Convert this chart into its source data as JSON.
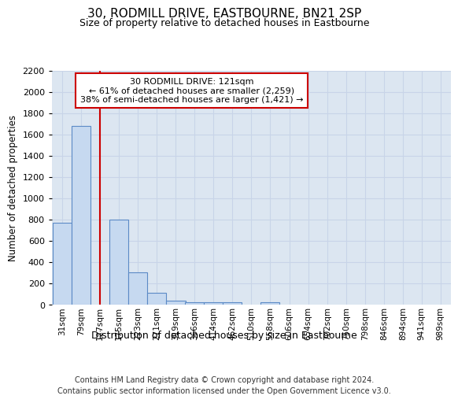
{
  "title": "30, RODMILL DRIVE, EASTBOURNE, BN21 2SP",
  "subtitle": "Size of property relative to detached houses in Eastbourne",
  "xlabel": "Distribution of detached houses by size in Eastbourne",
  "ylabel": "Number of detached properties",
  "categories": [
    "31sqm",
    "79sqm",
    "127sqm",
    "175sqm",
    "223sqm",
    "271sqm",
    "319sqm",
    "366sqm",
    "414sqm",
    "462sqm",
    "510sqm",
    "558sqm",
    "606sqm",
    "654sqm",
    "702sqm",
    "750sqm",
    "798sqm",
    "846sqm",
    "894sqm",
    "941sqm",
    "989sqm"
  ],
  "values": [
    770,
    1680,
    0,
    800,
    300,
    110,
    40,
    25,
    20,
    20,
    0,
    20,
    0,
    0,
    0,
    0,
    0,
    0,
    0,
    0,
    0
  ],
  "bar_color": "#c6d9f0",
  "bar_edge_color": "#5b8ac6",
  "grid_color": "#c8d4e8",
  "background_color": "#dce6f1",
  "annotation_text": "30 RODMILL DRIVE: 121sqm\n← 61% of detached houses are smaller (2,259)\n38% of semi-detached houses are larger (1,421) →",
  "annotation_box_color": "#ffffff",
  "annotation_box_edge": "#cc0000",
  "redline_color": "#cc0000",
  "ylim_max": 2200,
  "yticks": [
    0,
    200,
    400,
    600,
    800,
    1000,
    1200,
    1400,
    1600,
    1800,
    2000,
    2200
  ],
  "footer": "Contains HM Land Registry data © Crown copyright and database right 2024.\nContains public sector information licensed under the Open Government Licence v3.0."
}
